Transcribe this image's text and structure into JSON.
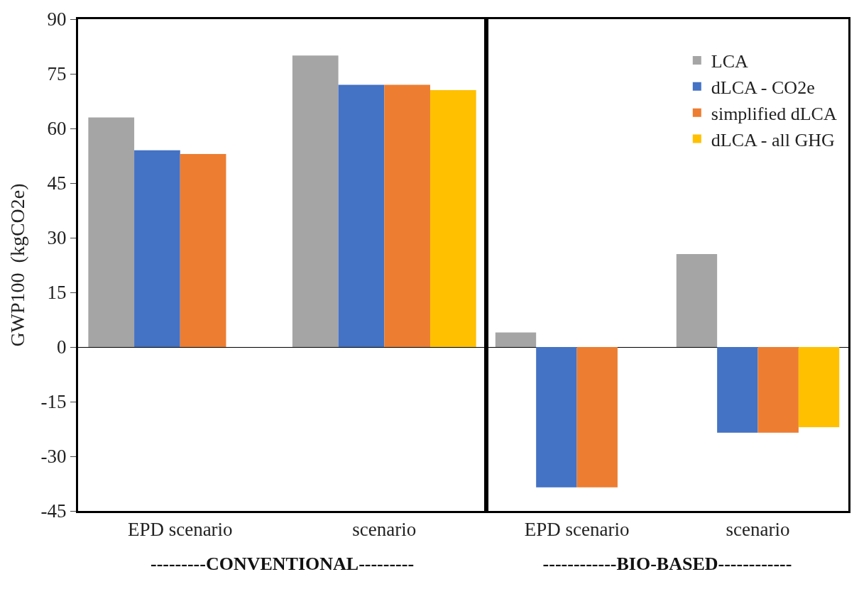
{
  "chart_data": [
    {
      "type": "bar",
      "ylabel": "GWP100  (kgCO2e)",
      "xlabel": "---------CONVENTIONAL---------",
      "categories": [
        "EPD scenario",
        "scenario"
      ],
      "ylim": [
        -45,
        90
      ],
      "yticks": [
        -45,
        -30,
        -15,
        0,
        15,
        30,
        45,
        60,
        75,
        90
      ],
      "tick_labels": "xy",
      "series": [
        {
          "color": "#a5a5a5",
          "values": [
            63,
            80
          ]
        },
        {
          "color": "#4472c4",
          "values": [
            54,
            72
          ]
        },
        {
          "color": "#ed7d31",
          "values": [
            53,
            72
          ]
        },
        {
          "color": "#ffc000",
          "values": [
            null,
            70.5
          ]
        }
      ]
    },
    {
      "type": "bar",
      "xlabel": "------------BIO-BASED------------",
      "categories": [
        "EPD scenario",
        "scenario"
      ],
      "ylim": [
        -45,
        90
      ],
      "tick_labels": "x",
      "legend": "top right",
      "series": [
        {
          "name": "LCA",
          "color": "#a5a5a5",
          "values": [
            4,
            25.5
          ]
        },
        {
          "name": "dLCA - CO2e",
          "color": "#4472c4",
          "values": [
            -38.5,
            -23.5
          ]
        },
        {
          "name": "simplified dLCA",
          "color": "#ed7d31",
          "values": [
            -38.5,
            -23.5
          ]
        },
        {
          "name": "dLCA - all GHG",
          "color": "#ffc000",
          "values": [
            null,
            -22
          ]
        }
      ]
    }
  ]
}
